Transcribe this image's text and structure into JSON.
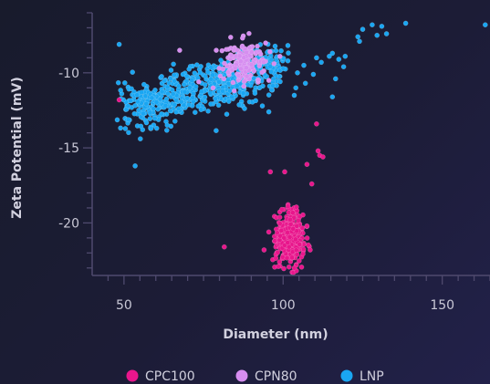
{
  "chart_data": {
    "type": "scatter",
    "title": "",
    "xlabel": "Diameter (nm)",
    "ylabel": "Zeta Potential (mV)",
    "xlim": [
      40,
      165
    ],
    "ylim": [
      -23.5,
      -6
    ],
    "xticks": [
      50,
      100,
      150
    ],
    "yticks": [
      -10,
      -15,
      -20
    ],
    "grid": false,
    "legend_position": "bottom",
    "series": [
      {
        "name": "CPC100",
        "color": "#e8168c",
        "cluster_summary": {
          "center": [
            102,
            -21
          ],
          "spread": [
            2.5,
            1.0
          ],
          "approx_count": 360
        },
        "points": [
          [
            48.5,
            -11.8
          ],
          [
            81.5,
            -21.6
          ],
          [
            96.0,
            -16.6
          ],
          [
            100.5,
            -16.6
          ],
          [
            107.5,
            -16.1
          ],
          [
            109.0,
            -17.4
          ],
          [
            110.5,
            -13.4
          ],
          [
            111.0,
            -15.2
          ],
          [
            111.5,
            -15.5
          ],
          [
            112.5,
            -15.6
          ],
          [
            101.5,
            -18.9
          ],
          [
            95.5,
            -20.6
          ],
          [
            107.5,
            -20.2
          ],
          [
            103.5,
            -23.0
          ],
          [
            98.5,
            -22.9
          ],
          [
            94.0,
            -21.8
          ],
          [
            108.5,
            -21.8
          ]
        ]
      },
      {
        "name": "CPN80",
        "color": "#d68df0",
        "cluster_summary": {
          "center": [
            88,
            -9.3
          ],
          "spread": [
            5,
            0.8
          ],
          "approx_count": 160
        },
        "points": [
          [
            67.5,
            -8.5
          ],
          [
            79.0,
            -8.5
          ],
          [
            86.0,
            -10.2
          ],
          [
            78.0,
            -11.0
          ],
          [
            73.5,
            -10.6
          ],
          [
            95.5,
            -10.5
          ],
          [
            99.0,
            -8.9
          ]
        ]
      },
      {
        "name": "LNP",
        "color": "#1aa6f2",
        "cluster_summary": {
          "trend_start": [
            50,
            -12.5
          ],
          "trend_end": [
            100,
            -9.5
          ],
          "approx_count": 620
        },
        "points": [
          [
            48.5,
            -8.1
          ],
          [
            53.5,
            -16.2
          ],
          [
            128.0,
            -6.8
          ],
          [
            131.0,
            -6.9
          ],
          [
            138.5,
            -6.7
          ],
          [
            163.5,
            -6.8
          ],
          [
            125.0,
            -7.1
          ],
          [
            129.5,
            -7.5
          ],
          [
            132.5,
            -7.4
          ],
          [
            123.5,
            -7.6
          ],
          [
            119.5,
            -8.9
          ],
          [
            124.0,
            -7.9
          ],
          [
            117.5,
            -9.1
          ],
          [
            114.5,
            -8.9
          ],
          [
            115.5,
            -8.7
          ],
          [
            110.5,
            -9.0
          ],
          [
            116.5,
            -10.4
          ],
          [
            119.0,
            -9.6
          ],
          [
            115.5,
            -11.6
          ],
          [
            112.0,
            -9.3
          ],
          [
            106.5,
            -9.5
          ],
          [
            103.5,
            -11.5
          ],
          [
            95.5,
            -12.6
          ],
          [
            107.0,
            -10.7
          ],
          [
            109.5,
            -10.1
          ],
          [
            104.5,
            -10.0
          ],
          [
            101.5,
            -9.2
          ],
          [
            97.0,
            -10.4
          ],
          [
            104.0,
            -11.0
          ]
        ]
      }
    ]
  }
}
